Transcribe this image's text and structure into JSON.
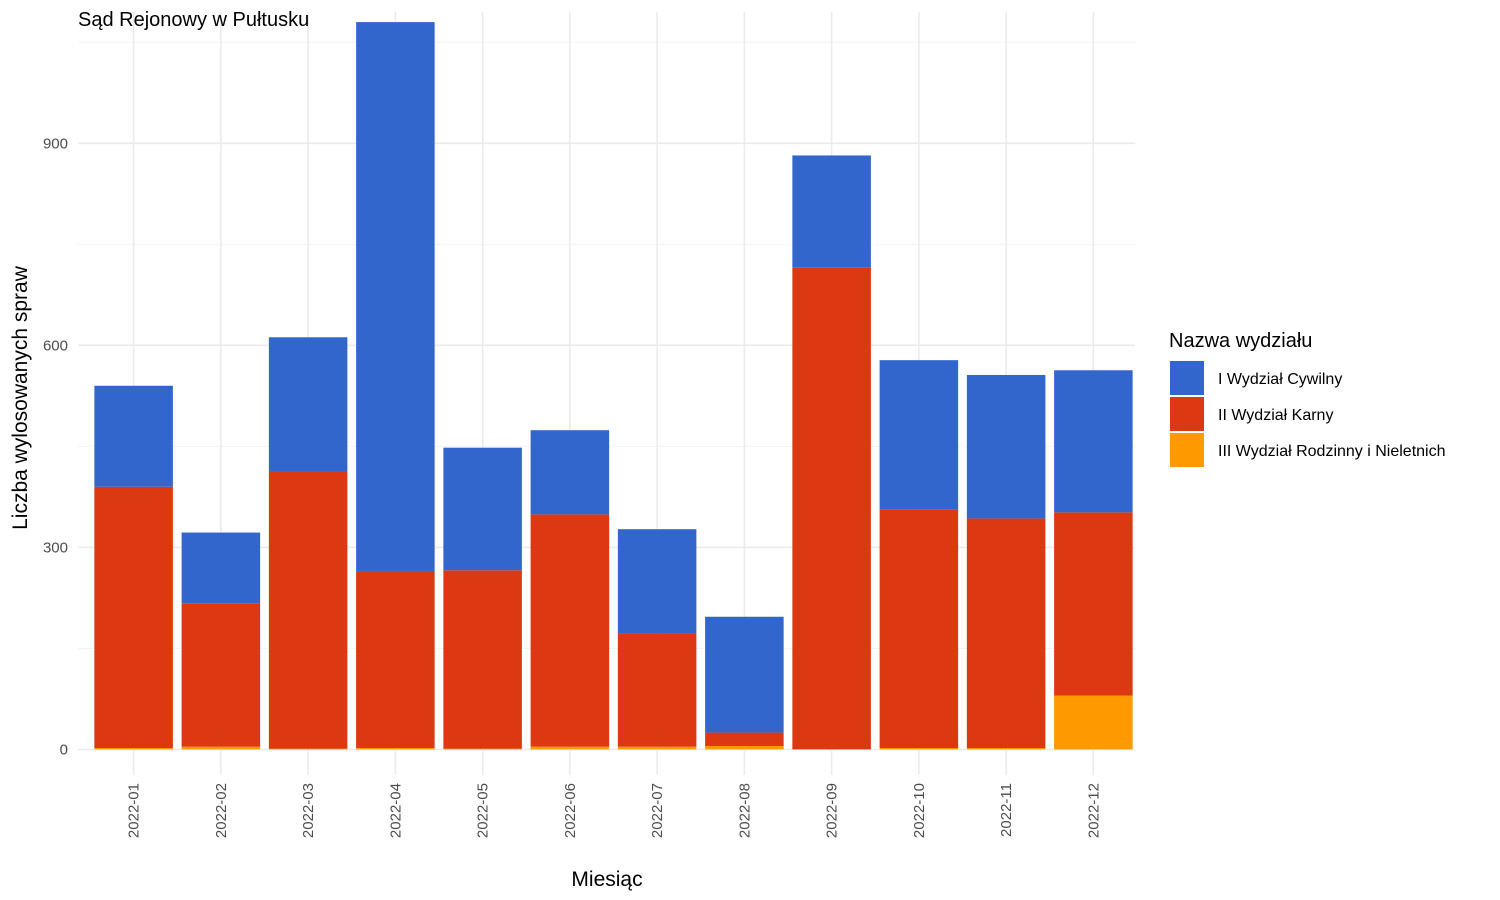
{
  "chart_data": {
    "type": "bar",
    "stacked": true,
    "title": "Sąd Rejonowy w Pułtusku",
    "xlabel": "Miesiąc",
    "ylabel": "Liczba wylosowanych spraw",
    "ylim": [
      -38,
      1095
    ],
    "yticks": [
      0,
      300,
      600,
      900
    ],
    "y_minor_ticks": [
      150,
      450,
      750,
      1050
    ],
    "grid": true,
    "legend": {
      "title": "Nazwa wydziału",
      "position": "right"
    },
    "categories": [
      "2022-01",
      "2022-02",
      "2022-03",
      "2022-04",
      "2022-05",
      "2022-06",
      "2022-07",
      "2022-08",
      "2022-09",
      "2022-10",
      "2022-11",
      "2022-12"
    ],
    "series": [
      {
        "name": "III Wydział Rodzinny i Nieletnich",
        "color": "#FF9900",
        "values": [
          2,
          4,
          1,
          2,
          1,
          4,
          4,
          5,
          0,
          2,
          2,
          80
        ]
      },
      {
        "name": "II Wydział Karny",
        "color": "#DC3912",
        "values": [
          388,
          213,
          411,
          263,
          265,
          345,
          168,
          20,
          716,
          354,
          341,
          272
        ]
      },
      {
        "name": "I Wydział Cywilny",
        "color": "#3366CC",
        "values": [
          150,
          105,
          200,
          815,
          182,
          125,
          155,
          172,
          166,
          222,
          213,
          211
        ]
      }
    ],
    "legend_order": [
      "I Wydział Cywilny",
      "II Wydział Karny",
      "III Wydział Rodzinny i Nieletnich"
    ]
  }
}
